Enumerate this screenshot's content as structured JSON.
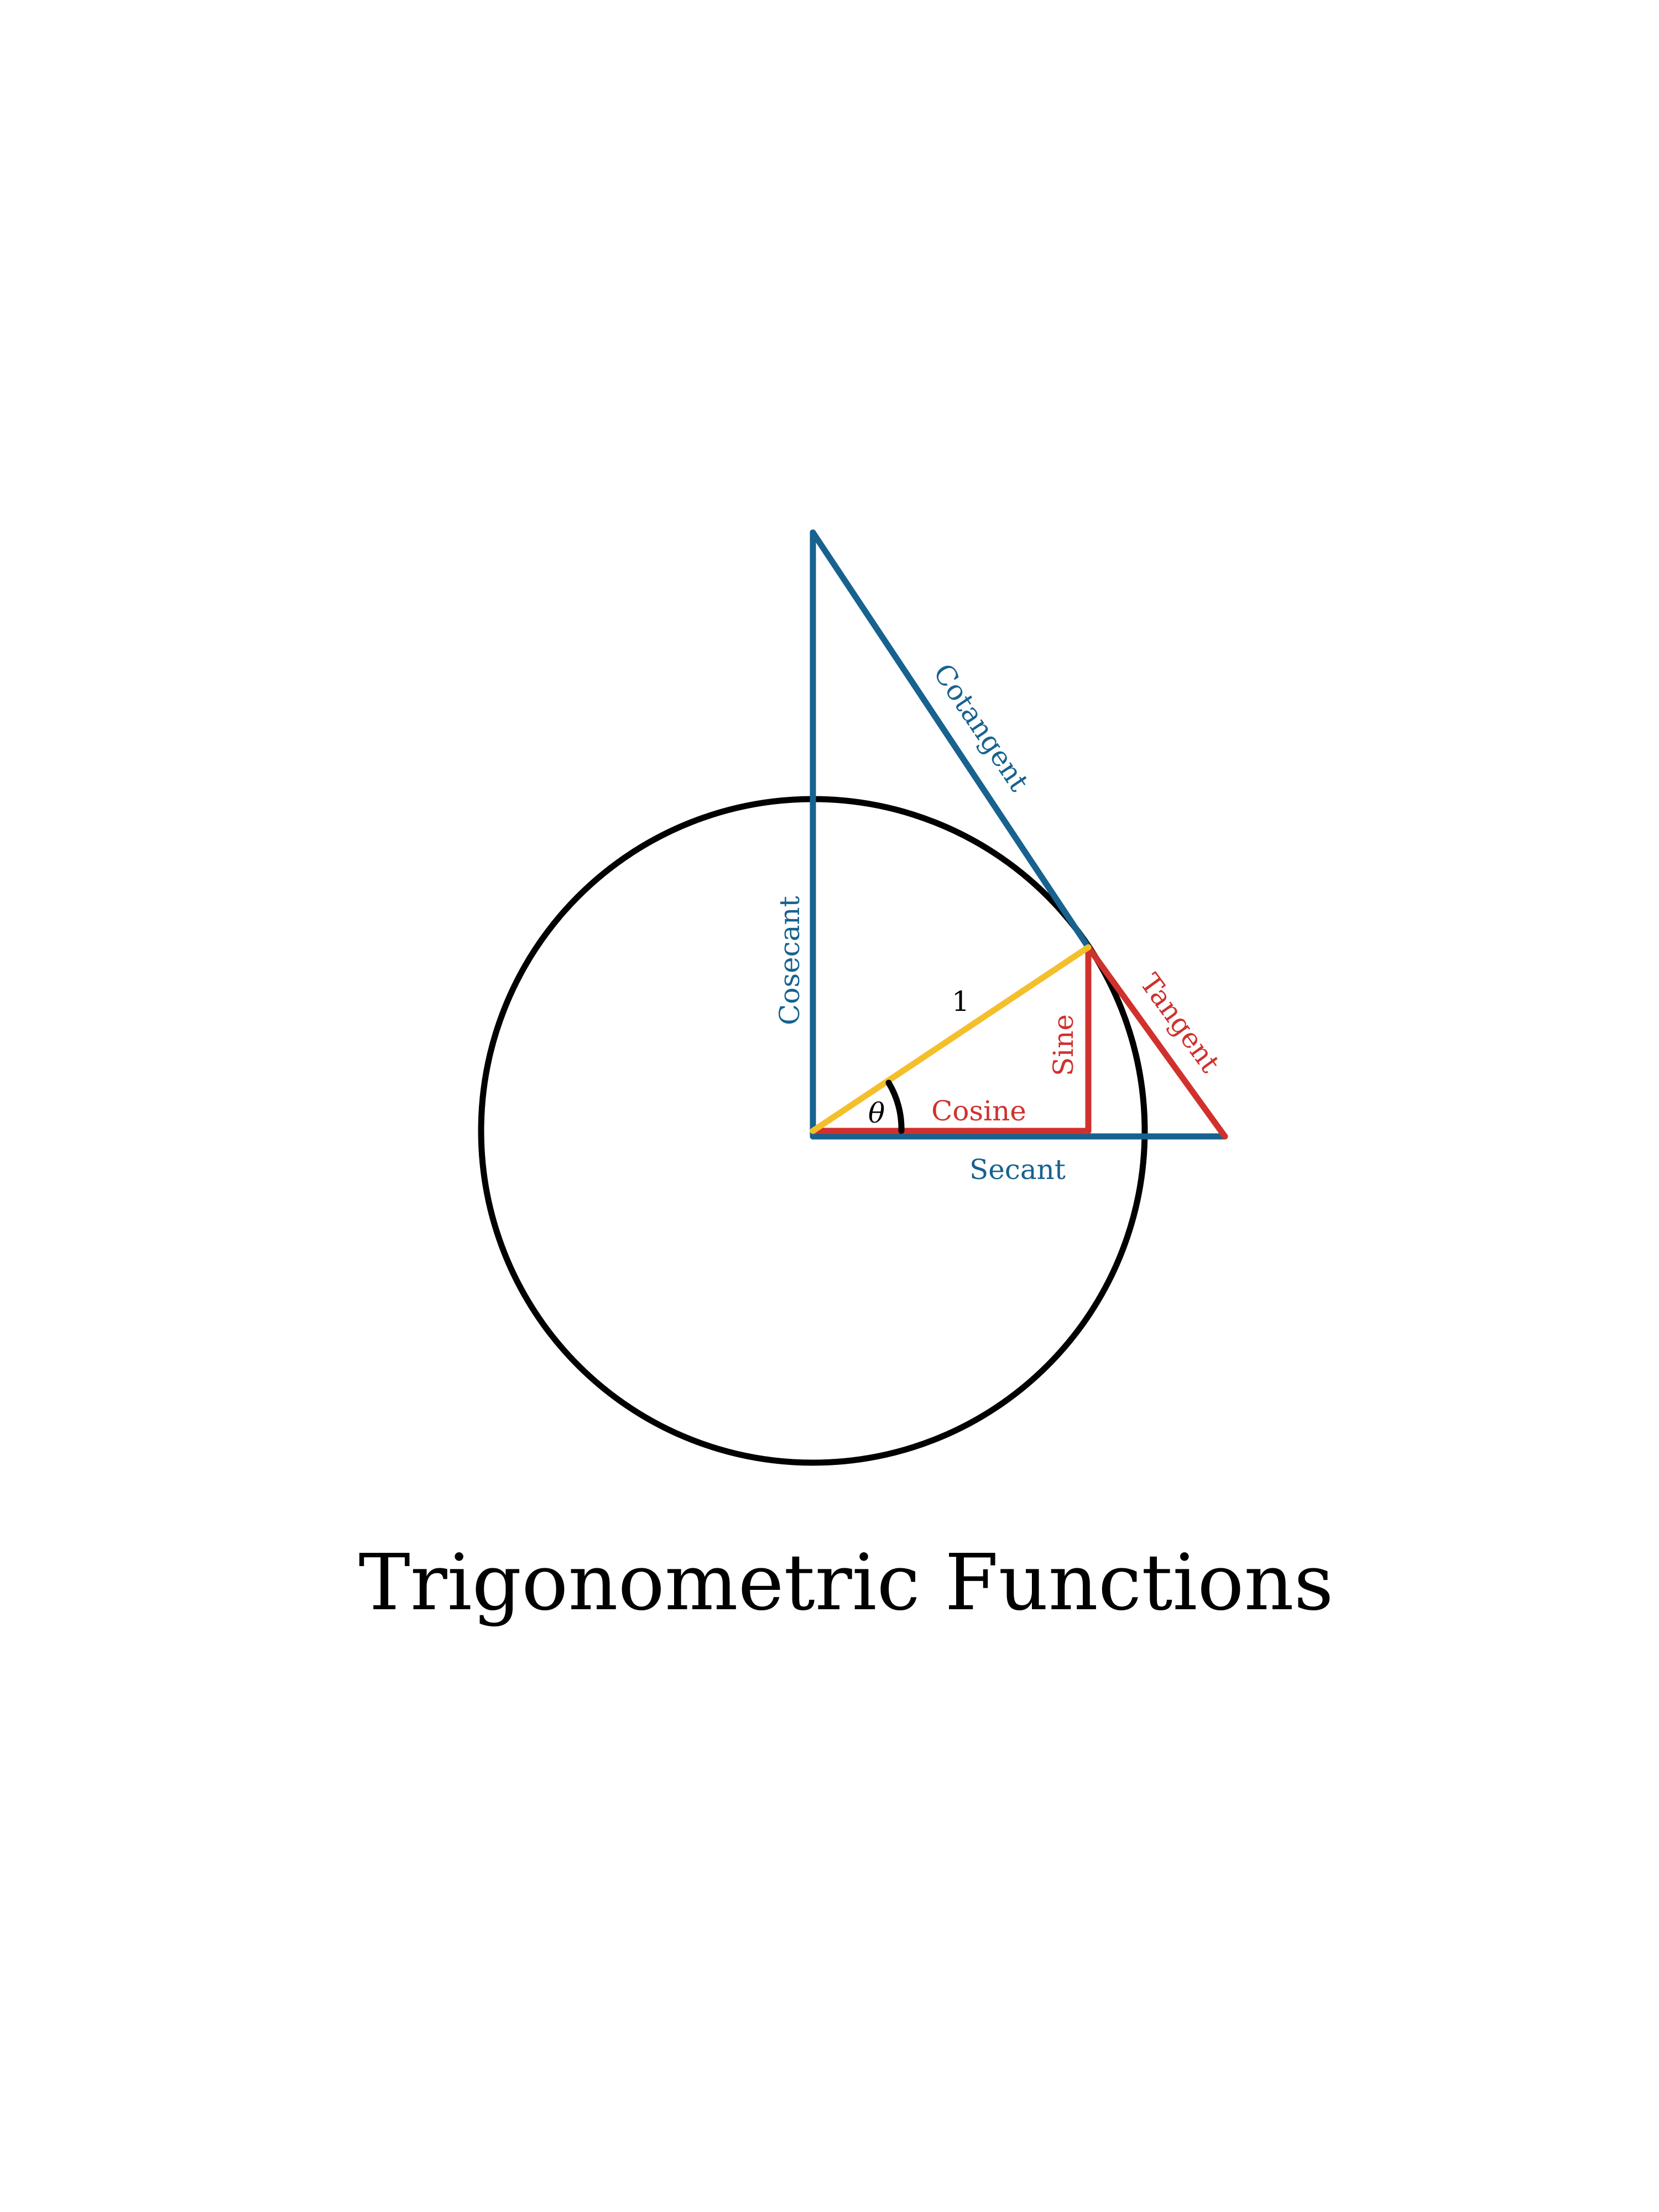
{
  "diagram": {
    "title": "Trigonometric Functions",
    "angle_symbol": "θ",
    "colors": {
      "circle": "#000000",
      "radius": "#f4bf2a",
      "red_lines": "#d0312d",
      "blue_lines": "#17628f",
      "text": "#000000"
    },
    "labels": {
      "radius": "1",
      "cosine": "Cosine",
      "sine": "Sine",
      "tangent": "Tangent",
      "secant": "Secant",
      "cosecant": "Cosecant",
      "cotangent": "Cotangent"
    }
  }
}
